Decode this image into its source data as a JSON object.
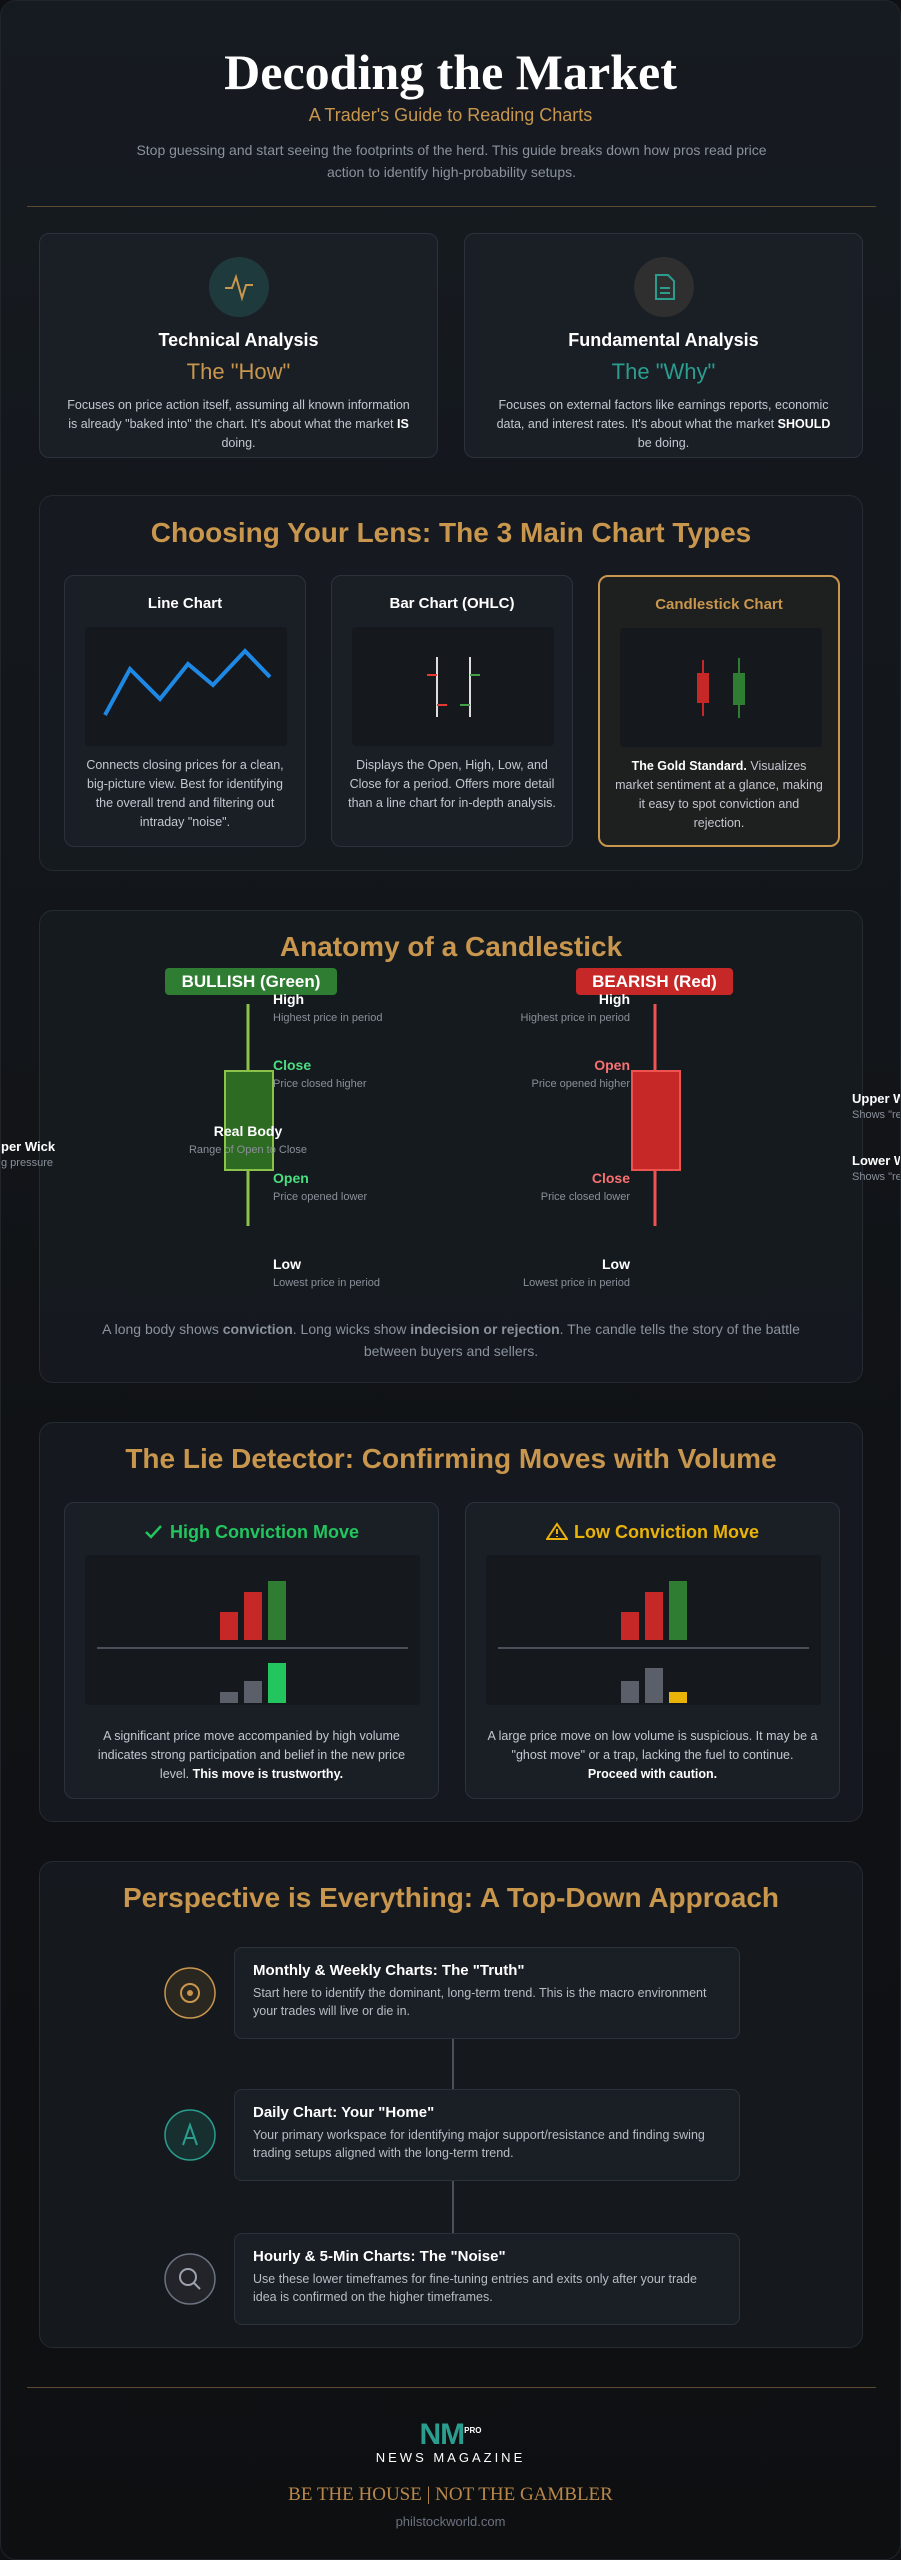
{
  "header": {
    "title": "Decoding the Market",
    "subtitle": "A Trader's Guide to Reading Charts",
    "intro": "Stop guessing and start seeing the footprints of the herd. This guide breaks down how pros read price action to identify high-probability setups."
  },
  "approaches": [
    {
      "title": "Technical Analysis",
      "subtitle": "The \"How\"",
      "description": [
        {
          "text": "Focuses on price action itself, assuming all known information is already \"baked into\" the chart. It's about what the market "
        },
        {
          "text": "IS",
          "bold": true
        },
        {
          "text": " doing."
        }
      ]
    },
    {
      "title": "Fundamental Analysis",
      "subtitle": "The \"Why\"",
      "description": [
        {
          "text": "Focuses on external factors like earnings reports, economic data, and interest rates. It's about what the market "
        },
        {
          "text": "SHOULD",
          "bold": true
        },
        {
          "text": " be doing."
        }
      ]
    }
  ],
  "chart_types": {
    "title": "Choosing Your Lens: The 3 Main Chart Types",
    "cards": [
      {
        "title": "Line Chart",
        "description": [
          {
            "text": "Connects closing prices for a clean, big-picture view. Best for identifying the overall trend and filtering out intraday \"noise\"."
          }
        ]
      },
      {
        "title": "Bar Chart (OHLC)",
        "description": [
          {
            "text": "Displays the Open, High, Low, and Close for a period. Offers more detail than a line chart for in-depth analysis."
          }
        ]
      },
      {
        "title": "Candlestick Chart",
        "description": [
          {
            "text": "The Gold Standard.",
            "bold": true
          },
          {
            "text": " Visualizes market sentiment at a glance, making it easy to spot conviction and rejection."
          }
        ]
      }
    ]
  },
  "anatomy": {
    "title": "Anatomy of a Candlestick",
    "bullish": {
      "badge": "BULLISH (Green)",
      "labels": [
        {
          "name": "High",
          "description": "Highest price in period"
        },
        {
          "name": "Close",
          "description": "Price closed higher"
        },
        {
          "name": "Open",
          "description": "Price opened lower"
        },
        {
          "name": "Low",
          "description": "Lowest price in period"
        }
      ],
      "body": {
        "name": "Real Body",
        "description": "Range of Open to Close"
      }
    },
    "bearish": {
      "badge": "BEARISH (Red)",
      "labels": [
        {
          "name": "High",
          "description": "Highest price in period"
        },
        {
          "name": "Open",
          "description": "Price opened higher"
        },
        {
          "name": "Close",
          "description": "Price closed lower"
        },
        {
          "name": "Low",
          "description": "Lowest price in period"
        }
      ]
    },
    "left_note": {
      "name": "per Wick",
      "description": "g pressure"
    },
    "right_notes": [
      {
        "name": "Upper W",
        "description": "Shows \"rej"
      },
      {
        "name": "Lower W",
        "description": "Shows \"rej"
      }
    ],
    "summary": [
      {
        "text": "A long body shows "
      },
      {
        "text": "conviction",
        "bold": true
      },
      {
        "text": ". Long wicks show "
      },
      {
        "text": "indecision or rejection",
        "bold": true
      },
      {
        "text": ". The candle tells the story of the battle between buyers and sellers."
      }
    ]
  },
  "volume": {
    "title": "The Lie Detector: Confirming Moves with Volume",
    "cards": [
      {
        "title": "High Conviction Move",
        "description": [
          {
            "text": "A significant price move accompanied by high volume indicates strong participation and belief in the new price level. "
          },
          {
            "text": "This move is trustworthy.",
            "bold": true
          }
        ]
      },
      {
        "title": "Low Conviction Move",
        "description": [
          {
            "text": "A large price move on low volume is suspicious. It may be a \"ghost move\" or a trap, lacking the fuel to continue. "
          },
          {
            "text": "Proceed with caution.",
            "bold": true
          }
        ]
      }
    ]
  },
  "perspective": {
    "title": "Perspective is Everything: A Top-Down Approach",
    "items": [
      {
        "title": "Monthly & Weekly Charts: The \"Truth\"",
        "description": "Start here to identify the dominant, long-term trend. This is the macro environment your trades will live or die in."
      },
      {
        "title": "Daily Chart: Your \"Home\"",
        "description": "Your primary workspace for identifying major support/resistance and finding swing trading setups aligned with the long-term trend."
      },
      {
        "title": "Hourly & 5-Min Charts: The \"Noise\"",
        "description": "Use these lower timeframes for fine-tuning entries and exits only after your trade idea is confirmed on the higher timeframes."
      }
    ]
  },
  "footer": {
    "logo": "NM",
    "logo_badge": "PRO",
    "brand": "NEWS MAGAZINE",
    "tagline": "BE THE HOUSE | NOT THE GAMBLER",
    "url": "philstockworld.com"
  }
}
